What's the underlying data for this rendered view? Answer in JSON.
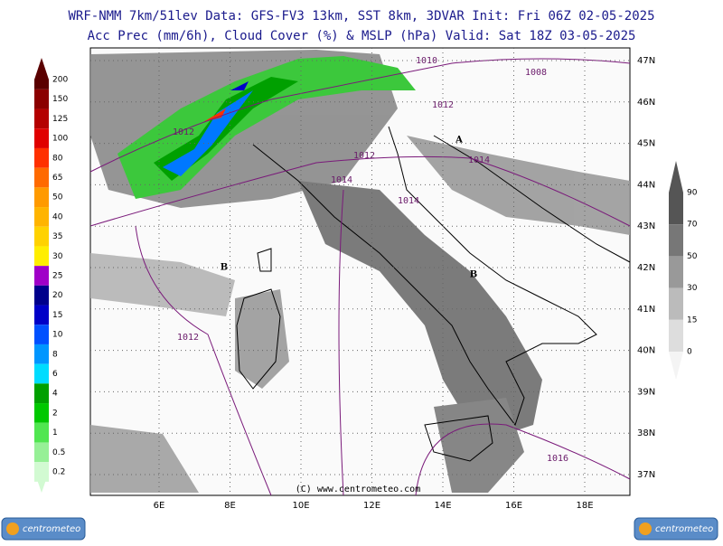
{
  "header": {
    "line1": "WRF-NMM 7km/51lev  Data: GFS-FV3 13km, SST 8km, 3DVAR  Init: Fri 06Z 02-05-2025",
    "line2": "Acc Prec (mm/6h), Cloud Cover (%) & MSLP (hPa)  Valid: Sat 18Z 03-05-2025"
  },
  "precip_scale": [
    {
      "label": "200",
      "color": "#5a0000"
    },
    {
      "label": "150",
      "color": "#8b0000"
    },
    {
      "label": "125",
      "color": "#b40000"
    },
    {
      "label": "100",
      "color": "#e00000"
    },
    {
      "label": "80",
      "color": "#ff3000"
    },
    {
      "label": "65",
      "color": "#ff6a00"
    },
    {
      "label": "50",
      "color": "#ff9a00"
    },
    {
      "label": "40",
      "color": "#ffb400"
    },
    {
      "label": "35",
      "color": "#ffd200"
    },
    {
      "label": "30",
      "color": "#ffee00"
    },
    {
      "label": "25",
      "color": "#a000c8"
    },
    {
      "label": "20",
      "color": "#00008c"
    },
    {
      "label": "15",
      "color": "#0000c8"
    },
    {
      "label": "10",
      "color": "#0050ff"
    },
    {
      "label": "8",
      "color": "#0096ff"
    },
    {
      "label": "6",
      "color": "#00dcff"
    },
    {
      "label": "4",
      "color": "#00a000"
    },
    {
      "label": "2",
      "color": "#00c800"
    },
    {
      "label": "1",
      "color": "#50e650"
    },
    {
      "label": "0.5",
      "color": "#96f096"
    },
    {
      "label": "0.2",
      "color": "#d2fad2"
    }
  ],
  "cloud_scale": [
    {
      "label": "90",
      "color": "#555555"
    },
    {
      "label": "70",
      "color": "#777777"
    },
    {
      "label": "50",
      "color": "#999999"
    },
    {
      "label": "30",
      "color": "#bbbbbb"
    },
    {
      "label": "15",
      "color": "#dddddd"
    },
    {
      "label": "0",
      "color": "#f4f4f4"
    }
  ],
  "lat_labels": [
    "47N",
    "46N",
    "45N",
    "44N",
    "43N",
    "42N",
    "41N",
    "40N",
    "39N",
    "38N",
    "37N"
  ],
  "lon_labels": [
    "6E",
    "8E",
    "10E",
    "12E",
    "14E",
    "16E",
    "18E"
  ],
  "isobar_labels": [
    "1010",
    "1008",
    "1012",
    "1012",
    "1012",
    "1014",
    "1014",
    "1014",
    "1012",
    "1016"
  ],
  "pressure_centers": [
    "A",
    "B",
    "B"
  ],
  "credit": "(C) www.centrometeo.com",
  "logos": [
    "centrometeo",
    "centrometeo"
  ]
}
